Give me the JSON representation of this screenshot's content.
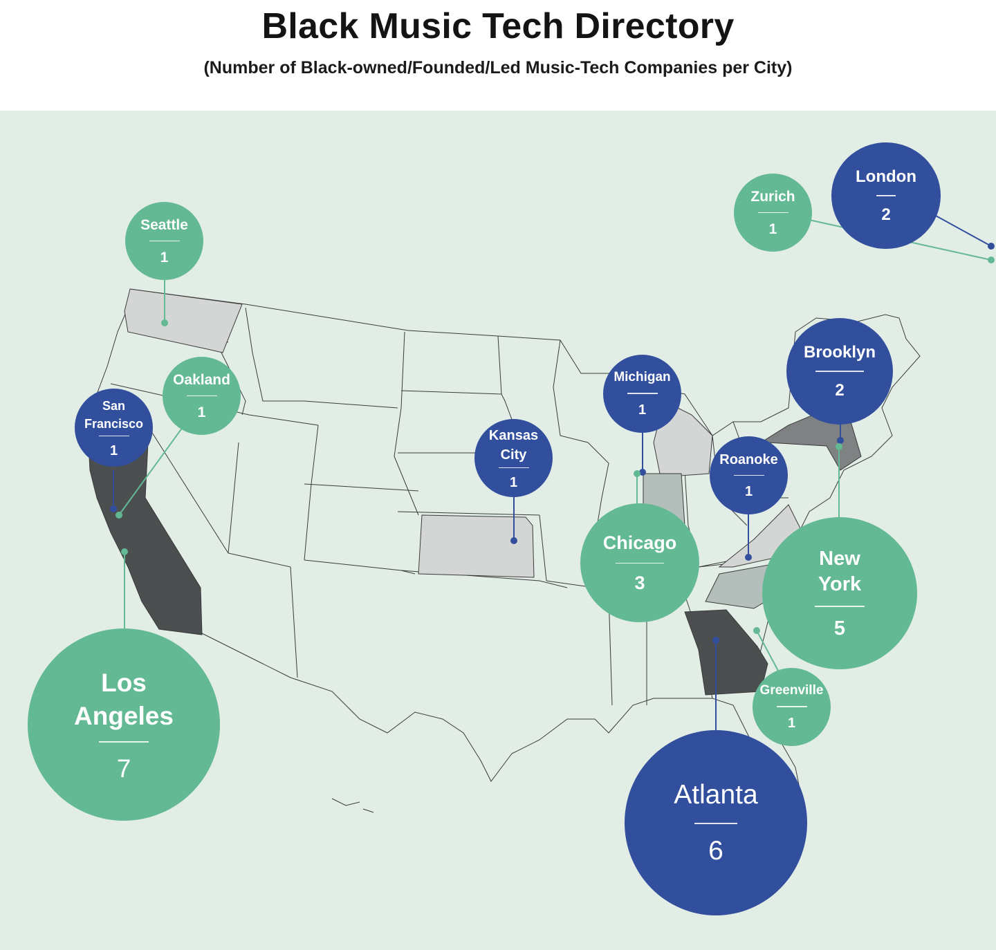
{
  "title": "Black Music Tech Directory",
  "subtitle": "(Number of Black-owned/Founded/Led Music-Tech Companies per City)",
  "colors": {
    "green": "#63b994",
    "blue": "#324f9e",
    "background": "#e2ede6",
    "state_dark": "#4b4f50",
    "state_mid": "#7f8283",
    "state_light": "#d3d6d5",
    "state_pale": "#b4bebb"
  },
  "cities": [
    {
      "id": "seattle",
      "name": "Seattle",
      "count": "1",
      "color": "green"
    },
    {
      "id": "oakland",
      "name": "Oakland",
      "count": "1",
      "color": "green"
    },
    {
      "id": "san-francisco",
      "name": "San Francisco",
      "count": "1",
      "color": "blue"
    },
    {
      "id": "los-angeles",
      "name": "Los Angeles",
      "count": "7",
      "color": "green"
    },
    {
      "id": "kansas-city",
      "name": "Kansas City",
      "count": "1",
      "color": "blue"
    },
    {
      "id": "michigan",
      "name": "Michigan",
      "count": "1",
      "color": "blue"
    },
    {
      "id": "chicago",
      "name": "Chicago",
      "count": "3",
      "color": "green"
    },
    {
      "id": "roanoke",
      "name": "Roanoke",
      "count": "1",
      "color": "blue"
    },
    {
      "id": "brooklyn",
      "name": "Brooklyn",
      "count": "2",
      "color": "blue"
    },
    {
      "id": "new-york",
      "name": "New York",
      "count": "5",
      "color": "green"
    },
    {
      "id": "greenville",
      "name": "Greenville",
      "count": "1",
      "color": "green"
    },
    {
      "id": "atlanta",
      "name": "Atlanta",
      "count": "6",
      "color": "blue"
    },
    {
      "id": "zurich",
      "name": "Zurich",
      "count": "1",
      "color": "green"
    },
    {
      "id": "london",
      "name": "London",
      "count": "2",
      "color": "blue"
    }
  ],
  "highlighted_states": [
    {
      "state": "California",
      "shade": "state_dark"
    },
    {
      "state": "Georgia",
      "shade": "state_dark"
    },
    {
      "state": "New York",
      "shade": "state_mid"
    },
    {
      "state": "Washington",
      "shade": "state_light"
    },
    {
      "state": "Kansas",
      "shade": "state_light"
    },
    {
      "state": "Michigan",
      "shade": "state_light"
    },
    {
      "state": "Indiana",
      "shade": "state_pale"
    },
    {
      "state": "Virginia",
      "shade": "state_light"
    },
    {
      "state": "North Carolina",
      "shade": "state_pale"
    }
  ]
}
